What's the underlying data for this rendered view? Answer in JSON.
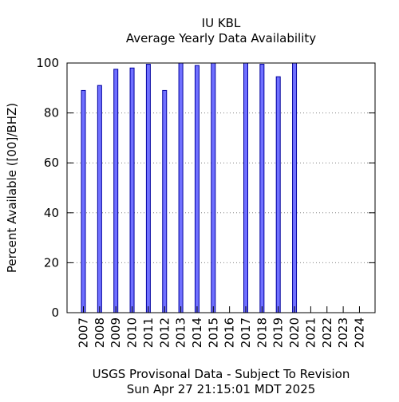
{
  "chart_data": {
    "type": "bar",
    "title": "IU KBL",
    "subtitle": "Average Yearly Data Availability",
    "ylabel": "Percent Available ([00]/BHZ)",
    "xlabel_line1": "USGS Provisonal Data - Subject To Revision",
    "xlabel_line2": "Sun Apr 27 21:15:01 MDT 2025",
    "ylim": [
      0,
      100
    ],
    "yticks": [
      "0",
      "20",
      "40",
      "60",
      "80",
      "100"
    ],
    "grid": true,
    "categories": [
      "2007",
      "2008",
      "2009",
      "2010",
      "2011",
      "2012",
      "2013",
      "2014",
      "2015",
      "2016",
      "2017",
      "2018",
      "2019",
      "2020",
      "2021",
      "2022",
      "2023",
      "2024"
    ],
    "values": [
      89,
      91,
      97.5,
      98,
      99.5,
      89,
      100,
      99,
      100,
      null,
      100,
      99.5,
      94.5,
      100,
      null,
      null,
      null,
      null
    ],
    "bar_color": "#7070ff",
    "bar_edge_color": "#0000a0"
  }
}
